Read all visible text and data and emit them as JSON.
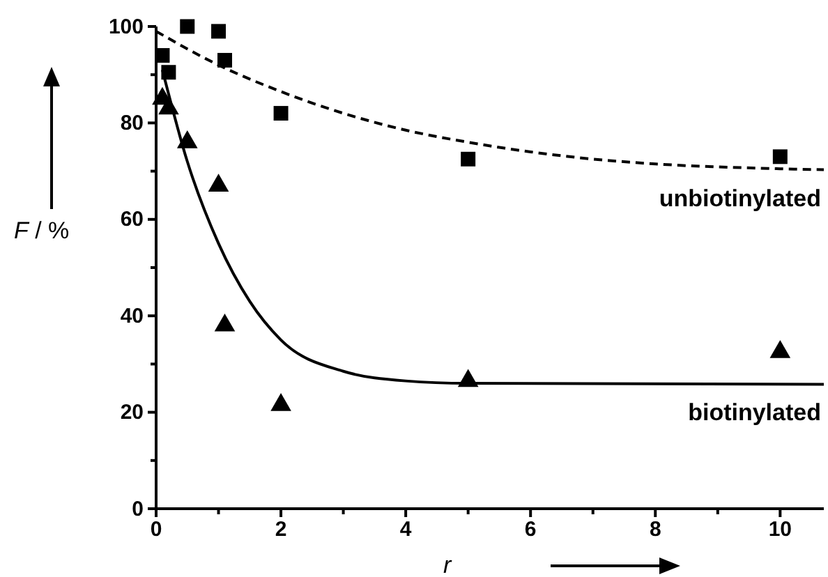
{
  "chart_data": {
    "type": "scatter",
    "xlabel": "r",
    "ylabel": "F / %",
    "xlim": [
      0,
      10.7
    ],
    "ylim": [
      0,
      100
    ],
    "xticks": [
      0,
      {
        "value": 1,
        "label": null
      },
      2,
      {
        "value": 3,
        "label": null
      },
      4,
      {
        "value": 5,
        "label": null
      },
      6,
      {
        "value": 7,
        "label": null
      },
      8,
      {
        "value": 9,
        "label": null
      },
      10
    ],
    "yticks": [
      0,
      {
        "value": 10,
        "label": null
      },
      20,
      {
        "value": 30,
        "label": null
      },
      40,
      {
        "value": 50,
        "label": null
      },
      60,
      {
        "value": 70,
        "label": null
      },
      80,
      {
        "value": 90,
        "label": null
      },
      100
    ],
    "grid": false,
    "series": [
      {
        "marker": "square",
        "color": "#000000",
        "x": [
          0.1,
          0.2,
          0.5,
          1.0,
          1.1,
          2,
          5,
          10
        ],
        "values": [
          94,
          90.5,
          100,
          99,
          93,
          82,
          72.5,
          73
        ]
      },
      {
        "marker": "triangle",
        "color": "#000000",
        "x": [
          0.1,
          0.2,
          0.5,
          1.0,
          1.1,
          2,
          5,
          10
        ],
        "values": [
          85,
          83,
          76,
          67,
          38,
          21.5,
          26.5,
          32.5
        ]
      },
      {
        "type": "line",
        "name": "unbiotinylated",
        "line_style": "dashed",
        "marker": "none",
        "color": "#000000",
        "x": [
          0,
          1,
          2,
          3,
          4,
          5,
          6,
          7,
          8,
          10,
          10.7
        ],
        "values": [
          99,
          92,
          86.5,
          82,
          78.5,
          76,
          74,
          72.5,
          71.5,
          70.5,
          70.3
        ]
      },
      {
        "type": "line",
        "name": "biotinylated",
        "line_style": "solid",
        "marker": "none",
        "color": "#000000",
        "x": [
          0.1,
          0.5,
          1,
          1.5,
          2,
          3,
          4,
          5,
          10.7
        ],
        "values": [
          91,
          72,
          55,
          43,
          35,
          28.5,
          26.5,
          26,
          25.8
        ]
      }
    ]
  }
}
